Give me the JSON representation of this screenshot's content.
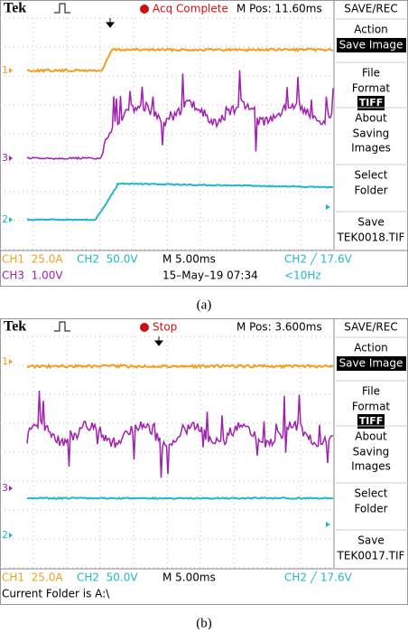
{
  "panels": [
    {
      "header": {
        "brand": "Tek",
        "status": "Acq Complete",
        "position": "M Pos: 11.60ms"
      },
      "menu": {
        "title": "SAVE/REC",
        "items": [
          {
            "lines": [
              "Action",
              "Save Image"
            ]
          },
          {
            "lines": [
              "File",
              "Format",
              "TIFF"
            ]
          },
          {
            "lines": [
              "About",
              "Saving",
              "Images"
            ]
          },
          {
            "lines": [
              "Select",
              "Folder"
            ]
          },
          {
            "lines": [
              "Save",
              "TEK0018.TIF"
            ]
          }
        ]
      },
      "channel_markers": [
        "1",
        "3",
        "2"
      ],
      "status_rows": [
        [
          "CH1  25.0A",
          "CH2  50.0V",
          "M 5.00ms",
          "CH2 ╱ 17.6V"
        ],
        [
          "CH3  1.00V",
          "15–May–19 07:34",
          "<10Hz"
        ]
      ],
      "caption": "(a)"
    },
    {
      "header": {
        "brand": "Tek",
        "status": "Stop",
        "position": "M Pos: 3.600ms"
      },
      "menu": {
        "title": "SAVE/REC",
        "items": [
          {
            "lines": [
              "Action",
              "Save Image"
            ]
          },
          {
            "lines": [
              "File",
              "Format",
              "TIFF"
            ]
          },
          {
            "lines": [
              "About",
              "Saving",
              "Images"
            ]
          },
          {
            "lines": [
              "Select",
              "Folder"
            ]
          },
          {
            "lines": [
              "Save",
              "TEK0017.TIF"
            ]
          }
        ]
      },
      "channel_markers": [
        "1",
        "3",
        "2"
      ],
      "status_rows": [
        [
          "CH1  25.0A",
          "CH2  50.0V",
          "M 5.00ms",
          "CH2 ╱ 17.6V"
        ],
        [
          "Current Folder is A:\\"
        ]
      ],
      "caption": "(b)"
    }
  ]
}
